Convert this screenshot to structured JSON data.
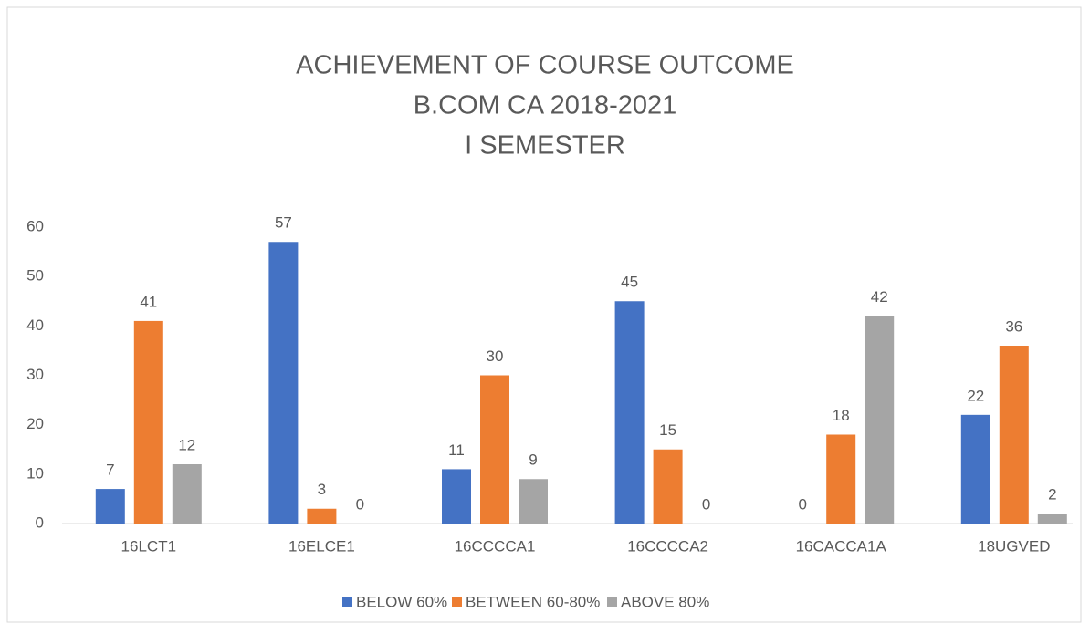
{
  "chart_data": {
    "type": "bar",
    "title": [
      "ACHIEVEMENT OF COURSE OUTCOME",
      "B.COM CA 2018-2021",
      "I SEMESTER"
    ],
    "categories": [
      "16LCT1",
      "16ELCE1",
      "16CCCCA1",
      "16CCCCA2",
      "16CACCA1A",
      "18UGVED"
    ],
    "series": [
      {
        "name": "BELOW 60%",
        "color": "#4472c4",
        "values": [
          7,
          57,
          11,
          45,
          0,
          22
        ]
      },
      {
        "name": "BETWEEN 60-80%",
        "color": "#ed7d31",
        "values": [
          41,
          3,
          30,
          15,
          18,
          36
        ]
      },
      {
        "name": "ABOVE 80%",
        "color": "#a5a5a5",
        "values": [
          12,
          0,
          9,
          0,
          42,
          2
        ]
      }
    ],
    "ylim": [
      0,
      60
    ],
    "yticks": [
      0,
      10,
      20,
      30,
      40,
      50,
      60
    ],
    "grid": false,
    "legend": "bottom"
  }
}
